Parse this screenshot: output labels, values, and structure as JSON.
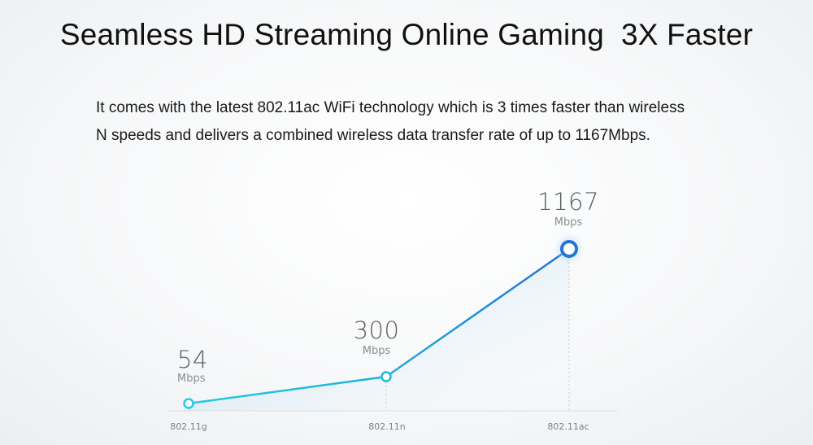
{
  "header": {
    "title": "Seamless HD Streaming Online Gaming  3X Faster"
  },
  "description": {
    "line1": "It comes with the latest 802.11ac WiFi technology which is 3 times faster than wireless",
    "line2": "N speeds and delivers a combined wireless data transfer rate of up to 1167Mbps."
  },
  "chart_data": {
    "type": "area",
    "categories": [
      "802.11g",
      "802.11n",
      "802.11ac"
    ],
    "values": [
      54,
      300,
      1167
    ],
    "value_labels": [
      "54",
      "300",
      "1167"
    ],
    "unit_label": "Mbps",
    "title": "",
    "xlabel": "",
    "ylabel": "",
    "grid": false,
    "legend": "none",
    "colors": {
      "line_start": "#26c9e3",
      "line_end": "#1f6fd1",
      "fill": "#aad2ee",
      "marker_halo": "#cfe3f6"
    }
  }
}
